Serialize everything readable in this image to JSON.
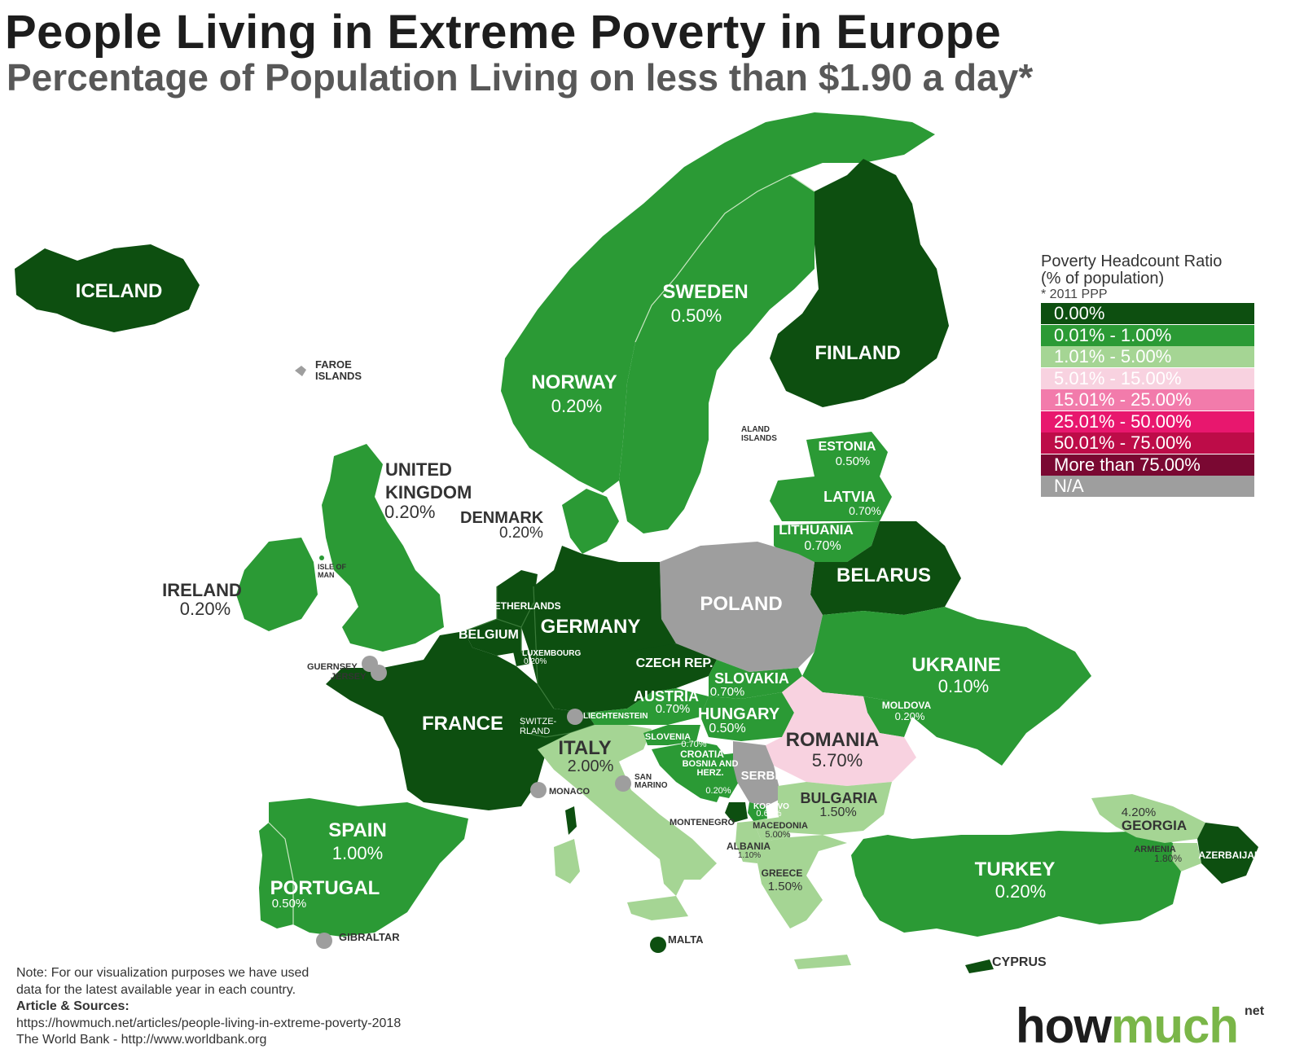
{
  "title": "People Living in Extreme Poverty in Europe",
  "subtitle": "Percentage of Population Living on less than $1.90 a day*",
  "legend": {
    "title": "Poverty Headcount Ratio",
    "subtitle": "(% of population)",
    "note": "* 2011 PPP",
    "items": [
      {
        "label": "0.00%",
        "color": "#0d4f10"
      },
      {
        "label": "0.01% - 1.00%",
        "color": "#2b9a35"
      },
      {
        "label": "1.01% - 5.00%",
        "color": "#a5d594"
      },
      {
        "label": "5.01% - 15.00%",
        "color": "#f8d2e0"
      },
      {
        "label": "15.01% - 25.00%",
        "color": "#f27bab"
      },
      {
        "label": "25.01% - 50.00%",
        "color": "#e8176e"
      },
      {
        "label": "50.01% - 75.00%",
        "color": "#bd0c48"
      },
      {
        "label": "More than 75.00%",
        "color": "#7a0832"
      },
      {
        "label": "N/A",
        "color": "#9e9e9e"
      }
    ]
  },
  "countries": {
    "iceland": {
      "name": "ICELAND"
    },
    "faroe": {
      "name": "FAROE ISLANDS"
    },
    "sweden": {
      "name": "SWEDEN",
      "value": "0.50%"
    },
    "norway": {
      "name": "NORWAY",
      "value": "0.20%"
    },
    "finland": {
      "name": "FINLAND"
    },
    "aland": {
      "name": "ALAND ISLANDS"
    },
    "uk": {
      "name": "UNITED KINGDOM",
      "value": "0.20%"
    },
    "denmark": {
      "name": "DENMARK",
      "value": "0.20%"
    },
    "estonia": {
      "name": "ESTONIA",
      "value": "0.50%"
    },
    "latvia": {
      "name": "LATVIA",
      "value": "0.70%"
    },
    "lithuania": {
      "name": "LITHUANIA",
      "value": "0.70%"
    },
    "ireland": {
      "name": "IRELAND",
      "value": "0.20%"
    },
    "isle_of_man": {
      "name": "ISLE OF MAN"
    },
    "belarus": {
      "name": "BELARUS"
    },
    "poland": {
      "name": "POLAND"
    },
    "netherlands": {
      "name": "NETHERLANDS"
    },
    "belgium": {
      "name": "BELGIUM"
    },
    "germany": {
      "name": "GERMANY"
    },
    "luxembourg": {
      "name": "LUXEMBOURG",
      "value": "0.20%"
    },
    "guernsey": {
      "name": "GUERNSEY"
    },
    "jersey": {
      "name": "JERSEY"
    },
    "czech": {
      "name": "CZECH REP."
    },
    "slovakia": {
      "name": "SLOVAKIA",
      "value": "0.70%"
    },
    "ukraine": {
      "name": "UKRAINE",
      "value": "0.10%"
    },
    "austria": {
      "name": "AUSTRIA",
      "value": "0.70%"
    },
    "liechtenstein": {
      "name": "LIECHTENSTEIN"
    },
    "hungary": {
      "name": "HUNGARY",
      "value": "0.50%"
    },
    "moldova": {
      "name": "MOLDOVA",
      "value": "0.20%"
    },
    "france": {
      "name": "FRANCE"
    },
    "switzerland": {
      "name": "SWITZERLAND"
    },
    "romania": {
      "name": "ROMANIA",
      "value": "5.70%"
    },
    "slovenia": {
      "name": "SLOVENIA",
      "value": "0.70%"
    },
    "italy": {
      "name": "ITALY",
      "value": "2.00%"
    },
    "croatia": {
      "name": "CROATIA"
    },
    "bosnia": {
      "name": "BOSNIA AND HERZ.",
      "value": "0.20%"
    },
    "serbia": {
      "name": "SERBIA"
    },
    "san_marino": {
      "name": "SAN MARINO"
    },
    "monaco": {
      "name": "MONACO"
    },
    "bulgaria": {
      "name": "BULGARIA",
      "value": "1.50%"
    },
    "kosovo": {
      "name": "KOSOVO",
      "value": "0.60%"
    },
    "montenegro": {
      "name": "MONTENEGRO"
    },
    "macedonia": {
      "name": "MACEDONIA",
      "value": "5.00%"
    },
    "albania": {
      "name": "ALBANIA",
      "value": "1.10%"
    },
    "greece": {
      "name": "GREECE",
      "value": "1.50%"
    },
    "georgia": {
      "name": "GEORGIA",
      "value": "4.20%"
    },
    "armenia": {
      "name": "ARMENIA",
      "value": "1.80%"
    },
    "azerbaijan": {
      "name": "AZERBAIJAN"
    },
    "spain": {
      "name": "SPAIN",
      "value": "1.00%"
    },
    "portugal": {
      "name": "PORTUGAL",
      "value": "0.50%"
    },
    "turkey": {
      "name": "TURKEY",
      "value": "0.20%"
    },
    "gibraltar": {
      "name": "GIBRALTAR"
    },
    "malta": {
      "name": "MALTA"
    },
    "cyprus": {
      "name": "CYPRUS"
    }
  },
  "note": {
    "line1": "Note: For our visualization purposes we have used",
    "line2": "data for the latest available year in each country.",
    "sources_heading": "Article & Sources:",
    "source1": "https://howmuch.net/articles/people-living-in-extreme-poverty-2018",
    "source2": "The World Bank - http://www.worldbank.org"
  },
  "brand": {
    "how": "how",
    "much": "much",
    "net": "net"
  }
}
